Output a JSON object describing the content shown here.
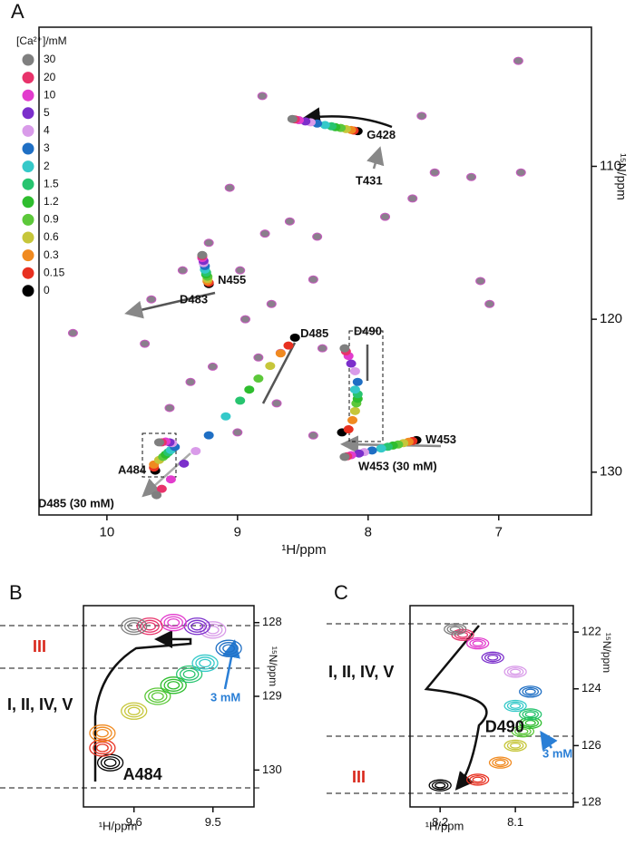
{
  "chart_data": [
    {
      "type": "scatter",
      "panel": "A",
      "x_label": "¹H/ppm",
      "y_label": "¹⁵N/ppm",
      "xlim": [
        10.52,
        6.29
      ],
      "ylim": [
        132.8,
        100.9
      ],
      "xticks": [
        10,
        9,
        8,
        7
      ],
      "yticks": [
        110,
        120,
        130
      ],
      "legend": {
        "title": "[Ca²⁺]/mM",
        "items": [
          {
            "name": "30",
            "color": "#7f7f7f"
          },
          {
            "name": "20",
            "color": "#e8336b"
          },
          {
            "name": "10",
            "color": "#e23ccd"
          },
          {
            "name": "5",
            "color": "#7b2fcb"
          },
          {
            "name": "4",
            "color": "#d99be9"
          },
          {
            "name": "3",
            "color": "#1f6fc4"
          },
          {
            "name": "2",
            "color": "#35c9c9"
          },
          {
            "name": "1.5",
            "color": "#27c46f"
          },
          {
            "name": "1.2",
            "color": "#2ebd2e"
          },
          {
            "name": "0.9",
            "color": "#5cc83a"
          },
          {
            "name": "0.6",
            "color": "#c6c63a"
          },
          {
            "name": "0.3",
            "color": "#f08a20"
          },
          {
            "name": "0.15",
            "color": "#e83020"
          },
          {
            "name": "0",
            "color": "#000000"
          }
        ]
      },
      "background_peaks": {
        "x": [
          8.81,
          6.85,
          7.59,
          9.06,
          8.6,
          8.39,
          8.79,
          9.22,
          9.42,
          8.98,
          9.66,
          8.42,
          8.74,
          8.94,
          8.35,
          8.67,
          9.19,
          9.71,
          9.52,
          9.0,
          8.7,
          8.42,
          7.49,
          7.21,
          6.83,
          7.66,
          7.87,
          7.14,
          7.07,
          10.26,
          9.36,
          8.84
        ],
        "y": [
          105.4,
          103.1,
          106.7,
          111.4,
          113.6,
          114.6,
          114.4,
          115.0,
          116.8,
          116.8,
          118.7,
          117.4,
          119.0,
          120.0,
          121.9,
          122.2,
          123.1,
          121.6,
          125.8,
          127.4,
          125.5,
          127.6,
          110.4,
          110.7,
          110.4,
          112.1,
          113.3,
          117.5,
          119.0,
          120.9,
          124.1,
          122.5
        ]
      },
      "series": [
        {
          "name": "G428",
          "x": [
            8.58,
            8.56,
            8.53,
            8.48,
            8.44,
            8.39,
            8.33,
            8.28,
            8.25,
            8.21,
            8.17,
            8.13,
            8.11,
            8.08
          ],
          "values": [
            106.9,
            106.93,
            106.98,
            107.06,
            107.12,
            107.2,
            107.3,
            107.38,
            107.44,
            107.49,
            107.56,
            107.62,
            107.66,
            107.7
          ]
        },
        {
          "name": "N455",
          "x": [
            9.27,
            9.27,
            9.27,
            9.26,
            9.26,
            9.25,
            9.25,
            9.24,
            9.24,
            9.23,
            9.23,
            9.23,
            9.22,
            9.22
          ],
          "values": [
            115.8,
            115.88,
            115.99,
            116.18,
            116.33,
            116.52,
            116.75,
            116.94,
            117.07,
            117.21,
            117.36,
            117.51,
            117.61,
            117.7
          ]
        },
        {
          "name": "D485",
          "x": [
            9.62,
            9.58,
            9.51,
            9.41,
            9.32,
            9.22,
            9.09,
            8.98,
            8.91,
            8.84,
            8.75,
            8.67,
            8.61,
            8.56
          ],
          "values": [
            131.5,
            131.09,
            130.47,
            129.44,
            128.62,
            127.59,
            126.35,
            125.32,
            124.6,
            123.88,
            123.05,
            122.23,
            121.72,
            121.2
          ]
        },
        {
          "name": "D490",
          "x": [
            8.18,
            8.17,
            8.15,
            8.13,
            8.1,
            8.08,
            8.1,
            8.08,
            8.08,
            8.09,
            8.1,
            8.12,
            8.15,
            8.2
          ],
          "values": [
            121.9,
            122.1,
            122.4,
            122.9,
            123.4,
            124.1,
            124.6,
            124.9,
            125.2,
            125.5,
            126.0,
            126.6,
            127.2,
            127.4
          ]
        },
        {
          "name": "W453",
          "x": [
            8.18,
            8.16,
            8.13,
            8.07,
            8.03,
            7.97,
            7.9,
            7.85,
            7.81,
            7.77,
            7.73,
            7.69,
            7.66,
            7.63
          ],
          "values": [
            129.0,
            128.96,
            128.89,
            128.78,
            128.69,
            128.58,
            128.45,
            128.34,
            128.26,
            128.19,
            128.1,
            128.01,
            127.96,
            127.9
          ]
        },
        {
          "name": "A484",
          "x": [
            9.6,
            9.58,
            9.55,
            9.52,
            9.5,
            9.48,
            9.51,
            9.53,
            9.55,
            9.57,
            9.6,
            9.64,
            9.64,
            9.63
          ],
          "values": [
            128.05,
            128.05,
            128.0,
            128.05,
            128.1,
            128.35,
            128.55,
            128.7,
            128.85,
            129.0,
            129.2,
            129.5,
            129.7,
            129.9
          ]
        }
      ],
      "annotations": [
        "T431",
        "D483",
        "W453 (30 mM)",
        "D485 (30 mM)"
      ]
    },
    {
      "type": "scatter",
      "panel": "B",
      "x_label": "¹H/ppm",
      "y_label": "¹⁵N/ppm",
      "xlim": [
        9.664,
        9.448
      ],
      "ylim": [
        130.5,
        127.77
      ],
      "xticks": [
        9.6,
        9.5
      ],
      "yticks": [
        128,
        129,
        130
      ],
      "series": [
        {
          "name": "A484",
          "x": [
            9.6,
            9.58,
            9.55,
            9.52,
            9.5,
            9.48,
            9.51,
            9.53,
            9.55,
            9.57,
            9.6,
            9.64,
            9.64,
            9.63
          ],
          "values": [
            128.05,
            128.05,
            128.0,
            128.05,
            128.1,
            128.35,
            128.55,
            128.7,
            128.85,
            129.0,
            129.2,
            129.5,
            129.7,
            129.9
          ]
        }
      ],
      "annotations": [
        "III",
        "I, II, IV, V",
        "3 mM"
      ]
    },
    {
      "type": "scatter",
      "panel": "C",
      "x_label": "¹H/ppm",
      "y_label": "¹⁵N/ppm",
      "xlim": [
        8.24,
        8.023
      ],
      "ylim": [
        128.16,
        121.07
      ],
      "xticks": [
        8.2,
        8.1
      ],
      "yticks": [
        122,
        124,
        126,
        128
      ],
      "series": [
        {
          "name": "D490",
          "x": [
            8.18,
            8.17,
            8.15,
            8.13,
            8.1,
            8.08,
            8.1,
            8.08,
            8.08,
            8.09,
            8.1,
            8.12,
            8.15,
            8.2
          ],
          "values": [
            121.9,
            122.1,
            122.4,
            122.9,
            123.4,
            124.1,
            124.6,
            124.9,
            125.2,
            125.5,
            126.0,
            126.6,
            127.2,
            127.4
          ]
        }
      ],
      "annotations": [
        "I, II, IV, V",
        "III",
        "3 mM"
      ]
    }
  ]
}
